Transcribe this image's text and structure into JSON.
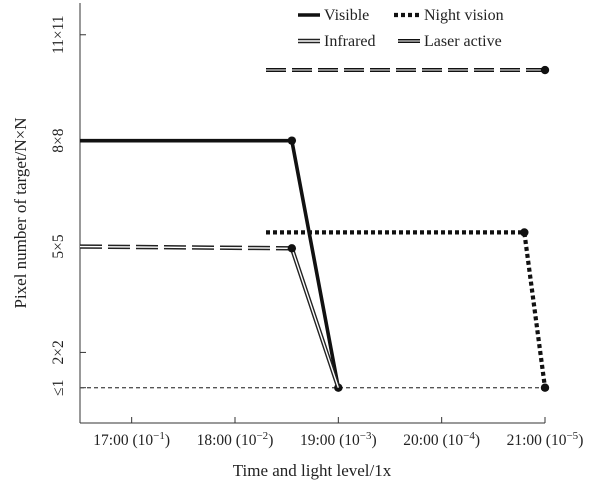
{
  "chart_data": {
    "type": "line",
    "title": "",
    "xlabel": "Time and light level/1x",
    "ylabel": "Pixel number of target/N×N",
    "x_ticks": [
      {
        "main": "17:00 (10",
        "exp": "−1",
        "close": ")",
        "value": 17
      },
      {
        "main": "18:00 (10",
        "exp": "−2",
        "close": ")",
        "value": 18
      },
      {
        "main": "19:00 (10",
        "exp": "−3",
        "close": ")",
        "value": 19
      },
      {
        "main": "20:00 (10",
        "exp": "−4",
        "close": ")",
        "value": 20
      },
      {
        "main": "21:00 (10",
        "exp": "−5",
        "close": ")",
        "value": 21
      }
    ],
    "y_ticks": [
      {
        "label": "≤1",
        "value": 1
      },
      {
        "label": "2×2",
        "value": 2
      },
      {
        "label": "5×5",
        "value": 5
      },
      {
        "label": "8×8",
        "value": 8
      },
      {
        "label": "11×11",
        "value": 11
      }
    ],
    "x_range": [
      16.5,
      21.0
    ],
    "y_range": [
      0.0,
      11.9
    ],
    "legend_position": "top-right",
    "grid": false,
    "reference_line": {
      "y": 1,
      "x": [
        16.5,
        21.0
      ],
      "color": "#555555"
    },
    "series": [
      {
        "name": "Visible",
        "style": "solid",
        "color": "#111111",
        "points": [
          [
            16.5,
            8.0
          ],
          [
            18.55,
            8.0
          ],
          [
            19.0,
            1.0
          ]
        ],
        "markers": [
          [
            18.55,
            8.0
          ],
          [
            19.0,
            1.0
          ]
        ]
      },
      {
        "name": "Night vision",
        "style": "dotted",
        "color": "#111111",
        "points": [
          [
            18.3,
            5.4
          ],
          [
            20.8,
            5.4
          ],
          [
            21.0,
            1.0
          ]
        ],
        "markers": [
          [
            20.8,
            5.4
          ],
          [
            21.0,
            1.0
          ]
        ]
      },
      {
        "name": "Infrared",
        "style": "double",
        "color": "#222222",
        "points": [
          [
            16.5,
            5.0
          ],
          [
            18.55,
            4.95
          ],
          [
            19.0,
            1.0
          ]
        ],
        "dashed_until": 18.55,
        "markers": [
          [
            18.55,
            4.95
          ]
        ]
      },
      {
        "name": "Laser active",
        "style": "dashed",
        "color": "#111111",
        "points": [
          [
            18.3,
            10.0
          ],
          [
            21.0,
            10.0
          ]
        ],
        "markers": [
          [
            21.0,
            10.0
          ]
        ]
      }
    ]
  }
}
